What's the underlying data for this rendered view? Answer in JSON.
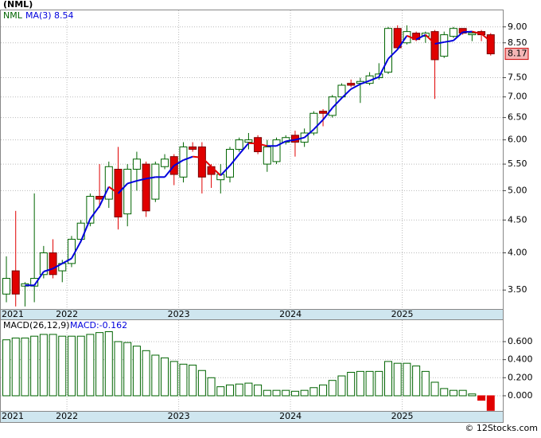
{
  "chart_data": [
    {
      "type": "candlestick",
      "title": "(NML)",
      "symbol_label": "NML",
      "ma_label": "MA(3)",
      "ma_value_label": "8.54",
      "last_price_label": "8.17",
      "log_scale": true,
      "grid": true,
      "up_color": "#006400",
      "down_color": "#e00000",
      "ma_up_color": "#0000dd",
      "ma_down_color": "#e00000",
      "xlim": [
        -0.6,
        53.3
      ],
      "xticks": [
        {
          "value": -5.5,
          "label": "2021"
        },
        {
          "value": 6.5,
          "label": "2022"
        },
        {
          "value": 18.5,
          "label": "2023"
        },
        {
          "value": 30.5,
          "label": "2024"
        },
        {
          "value": 42.5,
          "label": "2025"
        }
      ],
      "ylim": [
        3.27,
        9.55
      ],
      "yticks": [
        {
          "value": 3.5,
          "label": "3.50"
        },
        {
          "value": 4,
          "label": "4.00"
        },
        {
          "value": 4.5,
          "label": "4.50"
        },
        {
          "value": 5,
          "label": "5.00"
        },
        {
          "value": 5.5,
          "label": "5.50"
        },
        {
          "value": 6,
          "label": "6.00"
        },
        {
          "value": 6.5,
          "label": "6.50"
        },
        {
          "value": 7,
          "label": "7.00"
        },
        {
          "value": 7.5,
          "label": "7.50"
        },
        {
          "value": 8.5,
          "label": "8.50"
        },
        {
          "value": 9,
          "label": "9.00"
        }
      ],
      "open": [
        3.45,
        3.75,
        3.55,
        3.55,
        3.7,
        4.0,
        3.75,
        3.85,
        4.2,
        4.45,
        4.9,
        4.85,
        5.4,
        4.6,
        5.4,
        5.5,
        4.85,
        5.45,
        5.65,
        5.25,
        5.85,
        5.85,
        5.45,
        5.2,
        5.25,
        5.8,
        5.95,
        6.05,
        5.5,
        5.55,
        5.95,
        6.1,
        5.95,
        6.15,
        6.65,
        6.55,
        7.0,
        7.35,
        7.35,
        7.35,
        7.5,
        7.65,
        8.95,
        8.5,
        8.8,
        8.7,
        8.85,
        8.1,
        8.7,
        8.95,
        8.75,
        8.85,
        8.75
      ],
      "high": [
        3.95,
        4.65,
        3.6,
        4.95,
        4.1,
        4.2,
        3.9,
        4.25,
        4.5,
        4.95,
        5.5,
        5.55,
        5.85,
        5.5,
        5.75,
        5.55,
        5.55,
        5.7,
        5.7,
        5.95,
        5.95,
        5.95,
        5.5,
        5.5,
        5.85,
        6.05,
        6.15,
        6.1,
        6.0,
        6.05,
        6.1,
        6.2,
        6.25,
        6.65,
        6.7,
        7.05,
        7.35,
        7.45,
        7.5,
        7.65,
        7.9,
        9.0,
        9.05,
        9.05,
        8.85,
        8.85,
        8.9,
        8.85,
        9.0,
        8.9,
        8.85,
        8.9,
        8.8
      ],
      "low": [
        3.35,
        3.3,
        3.3,
        3.35,
        3.65,
        3.65,
        3.6,
        3.8,
        4.15,
        4.4,
        4.7,
        4.7,
        4.35,
        4.4,
        5.0,
        4.55,
        4.8,
        5.4,
        5.1,
        5.15,
        5.75,
        4.95,
        5.05,
        4.95,
        5.15,
        5.75,
        5.8,
        5.7,
        5.35,
        5.5,
        5.9,
        5.65,
        5.85,
        6.1,
        6.3,
        6.5,
        6.95,
        7.25,
        6.85,
        7.3,
        7.45,
        7.6,
        8.3,
        8.45,
        8.55,
        8.5,
        6.95,
        8.05,
        8.65,
        8.75,
        8.55,
        8.55,
        8.12
      ],
      "close": [
        3.65,
        3.45,
        3.58,
        3.65,
        4.0,
        3.7,
        3.85,
        4.2,
        4.45,
        4.9,
        4.85,
        5.45,
        4.55,
        5.4,
        5.6,
        4.65,
        5.5,
        5.6,
        5.3,
        5.85,
        5.8,
        5.25,
        5.3,
        5.3,
        5.8,
        6.0,
        6.0,
        5.75,
        5.85,
        6.0,
        6.05,
        5.95,
        6.15,
        6.6,
        6.6,
        7.0,
        7.3,
        7.3,
        7.4,
        7.55,
        7.6,
        8.95,
        8.35,
        8.85,
        8.6,
        8.8,
        8.0,
        8.75,
        8.95,
        8.8,
        8.8,
        8.75,
        8.17
      ],
      "ma": [
        null,
        null,
        3.56,
        3.56,
        3.74,
        3.78,
        3.85,
        3.92,
        4.17,
        4.52,
        4.73,
        5.07,
        4.95,
        5.13,
        5.18,
        5.22,
        5.25,
        5.25,
        5.47,
        5.58,
        5.65,
        5.63,
        5.45,
        5.28,
        5.47,
        5.7,
        5.93,
        5.92,
        5.87,
        5.87,
        5.97,
        6.0,
        6.05,
        6.23,
        6.45,
        6.73,
        6.97,
        7.2,
        7.33,
        7.42,
        7.52,
        8.03,
        8.3,
        8.72,
        8.6,
        8.75,
        8.47,
        8.52,
        8.57,
        8.83,
        8.85,
        8.78,
        8.54
      ]
    },
    {
      "type": "bar",
      "legend_label": "MACD(26,12,9)",
      "value_label": "MACD:-0.162",
      "color": "#006400",
      "neg_color": "#e00000",
      "grid": true,
      "xlim": [
        -0.6,
        53.3
      ],
      "xticks": [
        {
          "value": -5.5,
          "label": "2021"
        },
        {
          "value": 6.5,
          "label": "2022"
        },
        {
          "value": 18.5,
          "label": "2023"
        },
        {
          "value": 30.5,
          "label": "2024"
        },
        {
          "value": 42.5,
          "label": "2025"
        }
      ],
      "ylim": [
        -0.168,
        0.838
      ],
      "yticks": [
        {
          "value": 0,
          "label": "0.000"
        },
        {
          "value": 0.2,
          "label": "0.200"
        },
        {
          "value": 0.4,
          "label": "0.400"
        },
        {
          "value": 0.6,
          "label": "0.600"
        }
      ],
      "values": [
        0.62,
        0.64,
        0.64,
        0.66,
        0.68,
        0.68,
        0.66,
        0.66,
        0.66,
        0.68,
        0.7,
        0.71,
        0.6,
        0.59,
        0.55,
        0.5,
        0.45,
        0.42,
        0.38,
        0.35,
        0.34,
        0.28,
        0.2,
        0.1,
        0.12,
        0.13,
        0.14,
        0.12,
        0.06,
        0.06,
        0.06,
        0.05,
        0.06,
        0.09,
        0.12,
        0.17,
        0.22,
        0.26,
        0.27,
        0.27,
        0.27,
        0.38,
        0.36,
        0.36,
        0.33,
        0.27,
        0.15,
        0.08,
        0.06,
        0.06,
        0.02,
        -0.05,
        -0.162
      ]
    },
    {
      "type": "footer",
      "text": "© 12Stocks.com"
    }
  ]
}
